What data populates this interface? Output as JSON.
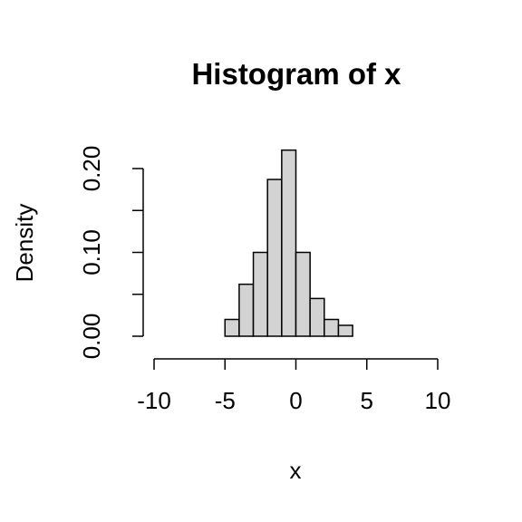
{
  "chart_data": {
    "type": "bar",
    "title": "Histogram of x",
    "xlabel": "x",
    "ylabel": "Density",
    "xlim": [
      -10,
      10
    ],
    "ylim": [
      0,
      0.2
    ],
    "x_ticks": [
      -10,
      -5,
      0,
      5,
      10
    ],
    "x_tick_labels": [
      "-10",
      "-5",
      "0",
      "5",
      "10"
    ],
    "y_ticks": [
      0,
      0.05,
      0.1,
      0.15,
      0.2
    ],
    "y_tick_labels": [
      "0.00",
      "",
      "0.10",
      "",
      "0.20"
    ],
    "bin_edges": [
      -10,
      -9,
      -8,
      -7,
      -6,
      -5,
      -4,
      -3,
      -2,
      -1,
      0,
      1,
      2,
      3,
      4,
      5,
      6,
      7,
      8,
      9,
      10
    ],
    "values": [
      0,
      0,
      0,
      0,
      0,
      0.02,
      0.062,
      0.1,
      0.187,
      0.222,
      0.1,
      0.045,
      0.02,
      0.013,
      0,
      0,
      0,
      0,
      0,
      0
    ],
    "bar_color": "#d3d3d3",
    "edge_color": "#000000",
    "grid": false
  }
}
